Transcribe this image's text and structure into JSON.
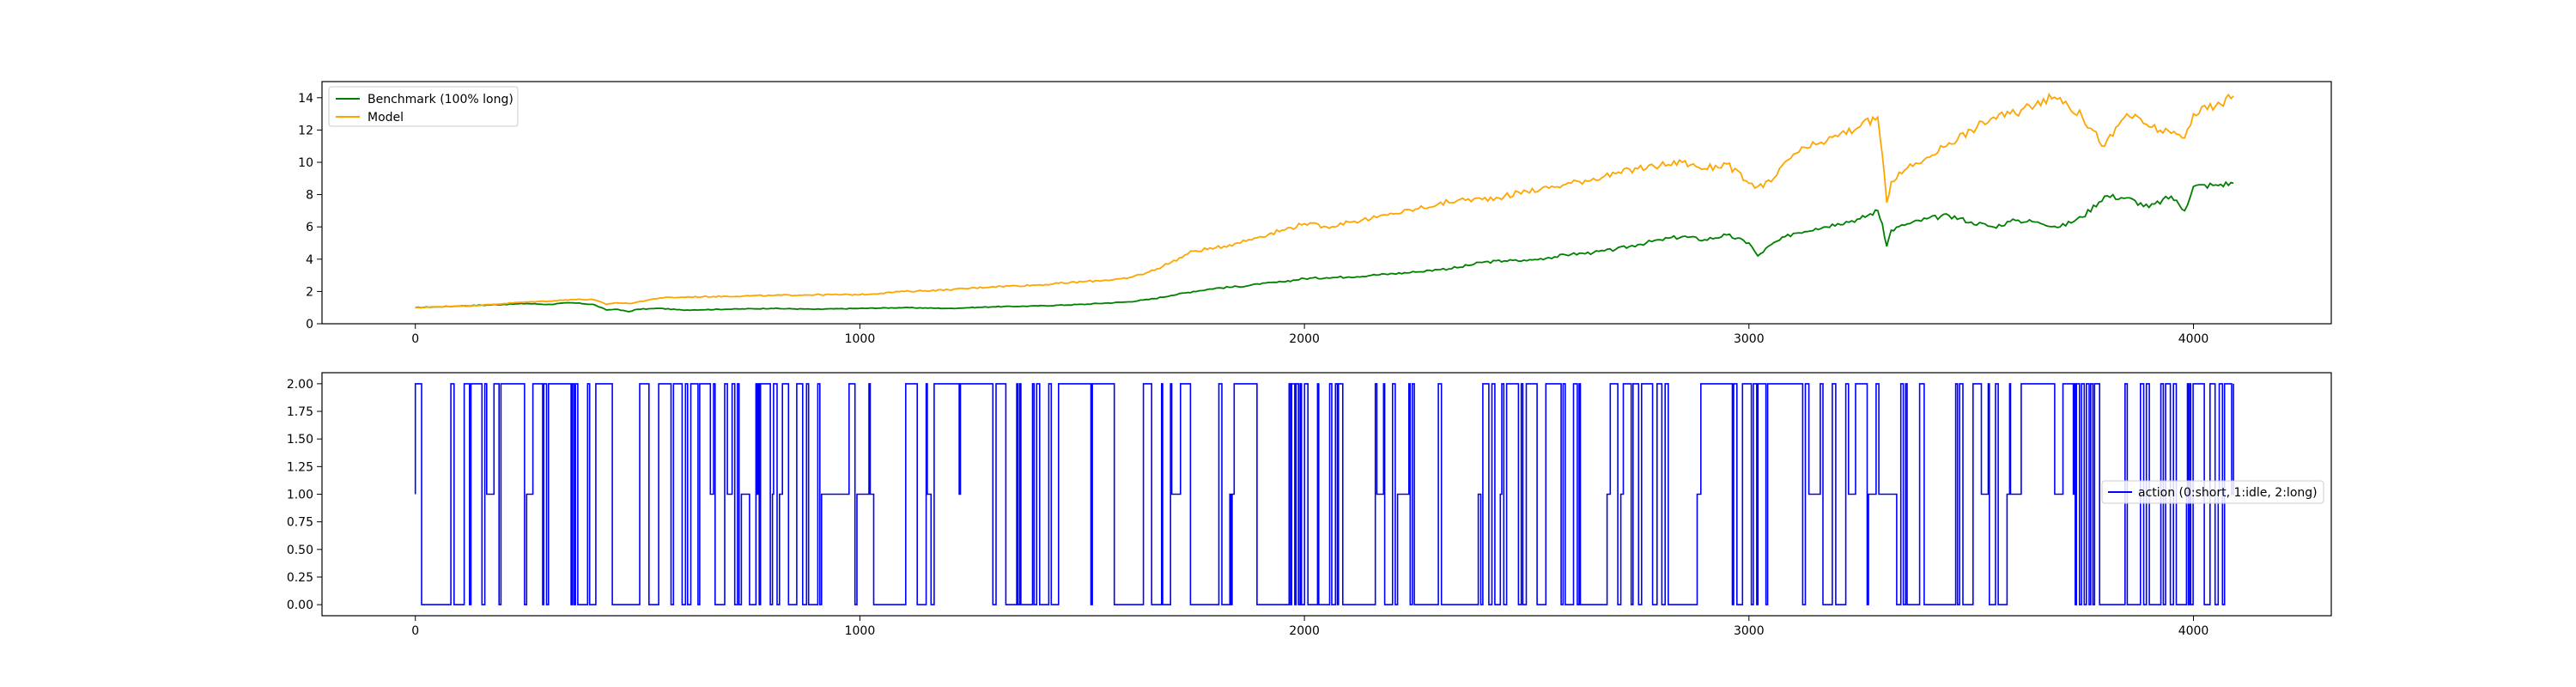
{
  "chart_data": [
    {
      "type": "line",
      "title": "",
      "xlabel": "",
      "ylabel": "",
      "xlim": [
        -210,
        4310
      ],
      "ylim": [
        0,
        15
      ],
      "xticks": [
        0,
        1000,
        2000,
        3000,
        4000
      ],
      "yticks": [
        0,
        2,
        4,
        6,
        8,
        10,
        12,
        14
      ],
      "grid": false,
      "legend": "top-left",
      "series": [
        {
          "name": "Benchmark (100% long)",
          "color": "#008000",
          "x": [
            0,
            50,
            100,
            150,
            200,
            250,
            300,
            350,
            400,
            430,
            450,
            480,
            500,
            550,
            600,
            700,
            800,
            900,
            1000,
            1100,
            1200,
            1300,
            1400,
            1500,
            1600,
            1650,
            1700,
            1750,
            1800,
            1850,
            1900,
            1950,
            2000,
            2050,
            2100,
            2150,
            2200,
            2250,
            2300,
            2350,
            2400,
            2450,
            2500,
            2550,
            2600,
            2650,
            2700,
            2750,
            2800,
            2850,
            2900,
            2950,
            3000,
            3020,
            3050,
            3100,
            3150,
            3200,
            3250,
            3290,
            3300,
            3310,
            3320,
            3350,
            3400,
            3450,
            3500,
            3550,
            3600,
            3650,
            3700,
            3750,
            3800,
            3850,
            3900,
            3950,
            3980,
            4000,
            4050,
            4090
          ],
          "y": [
            1.0,
            1.05,
            1.1,
            1.15,
            1.2,
            1.25,
            1.2,
            1.3,
            1.2,
            0.85,
            0.9,
            0.75,
            0.9,
            0.95,
            0.85,
            0.9,
            0.95,
            0.9,
            0.95,
            1.0,
            0.95,
            1.05,
            1.1,
            1.2,
            1.35,
            1.5,
            1.75,
            2.0,
            2.2,
            2.3,
            2.45,
            2.6,
            2.8,
            2.85,
            2.9,
            3.0,
            3.1,
            3.2,
            3.35,
            3.5,
            3.8,
            3.9,
            3.9,
            4.1,
            4.3,
            4.4,
            4.6,
            4.9,
            5.2,
            5.4,
            5.2,
            5.5,
            5.0,
            4.2,
            4.9,
            5.6,
            5.9,
            6.2,
            6.5,
            7.0,
            6.2,
            4.8,
            5.8,
            6.1,
            6.5,
            6.7,
            6.3,
            6.0,
            6.4,
            6.3,
            6.0,
            6.6,
            7.9,
            7.8,
            7.2,
            7.9,
            7.0,
            8.5,
            8.6,
            8.7
          ]
        },
        {
          "name": "Model",
          "color": "#FFA500",
          "x": [
            0,
            50,
            100,
            150,
            200,
            250,
            300,
            350,
            400,
            430,
            450,
            480,
            500,
            550,
            600,
            700,
            800,
            900,
            1000,
            1100,
            1200,
            1300,
            1400,
            1500,
            1600,
            1650,
            1700,
            1750,
            1800,
            1850,
            1900,
            1950,
            2000,
            2050,
            2100,
            2150,
            2200,
            2250,
            2300,
            2350,
            2400,
            2450,
            2500,
            2550,
            2600,
            2650,
            2700,
            2750,
            2800,
            2850,
            2900,
            2950,
            3000,
            3020,
            3050,
            3100,
            3150,
            3200,
            3250,
            3290,
            3300,
            3310,
            3320,
            3350,
            3400,
            3450,
            3500,
            3550,
            3600,
            3650,
            3700,
            3750,
            3800,
            3850,
            3900,
            3950,
            3980,
            4000,
            4050,
            4090
          ],
          "y": [
            1.0,
            1.05,
            1.1,
            1.15,
            1.25,
            1.35,
            1.4,
            1.5,
            1.5,
            1.2,
            1.3,
            1.25,
            1.35,
            1.6,
            1.65,
            1.7,
            1.75,
            1.8,
            1.8,
            2.0,
            2.1,
            2.3,
            2.4,
            2.6,
            2.8,
            3.2,
            3.8,
            4.5,
            4.7,
            5.0,
            5.4,
            5.8,
            6.2,
            6.0,
            6.3,
            6.5,
            6.8,
            7.1,
            7.4,
            7.7,
            7.7,
            7.9,
            8.2,
            8.4,
            8.7,
            9.0,
            9.3,
            9.6,
            9.8,
            10.0,
            9.6,
            9.9,
            8.7,
            8.5,
            8.8,
            10.5,
            11.1,
            11.6,
            12.2,
            12.8,
            10.5,
            7.5,
            8.8,
            9.5,
            10.3,
            11.2,
            12.0,
            12.8,
            13.0,
            13.8,
            14.0,
            12.8,
            11.0,
            13.0,
            12.2,
            11.8,
            11.5,
            13.0,
            13.5,
            14.1
          ]
        }
      ]
    },
    {
      "type": "line",
      "title": "",
      "xlabel": "",
      "ylabel": "",
      "xlim": [
        -210,
        4310
      ],
      "ylim": [
        -0.1,
        2.1
      ],
      "xticks": [
        0,
        1000,
        2000,
        3000,
        4000
      ],
      "yticks": [
        "0.00",
        "0.25",
        "0.50",
        "0.75",
        "1.00",
        "1.25",
        "1.50",
        "1.75",
        "2.00"
      ],
      "grid": false,
      "legend": "center-right",
      "series": [
        {
          "name": "action (0:short, 1:idle, 2:long)",
          "color": "#0000FF",
          "x_range": [
            0,
            4090
          ],
          "values": [
            0,
            1,
            2
          ]
        }
      ]
    }
  ]
}
